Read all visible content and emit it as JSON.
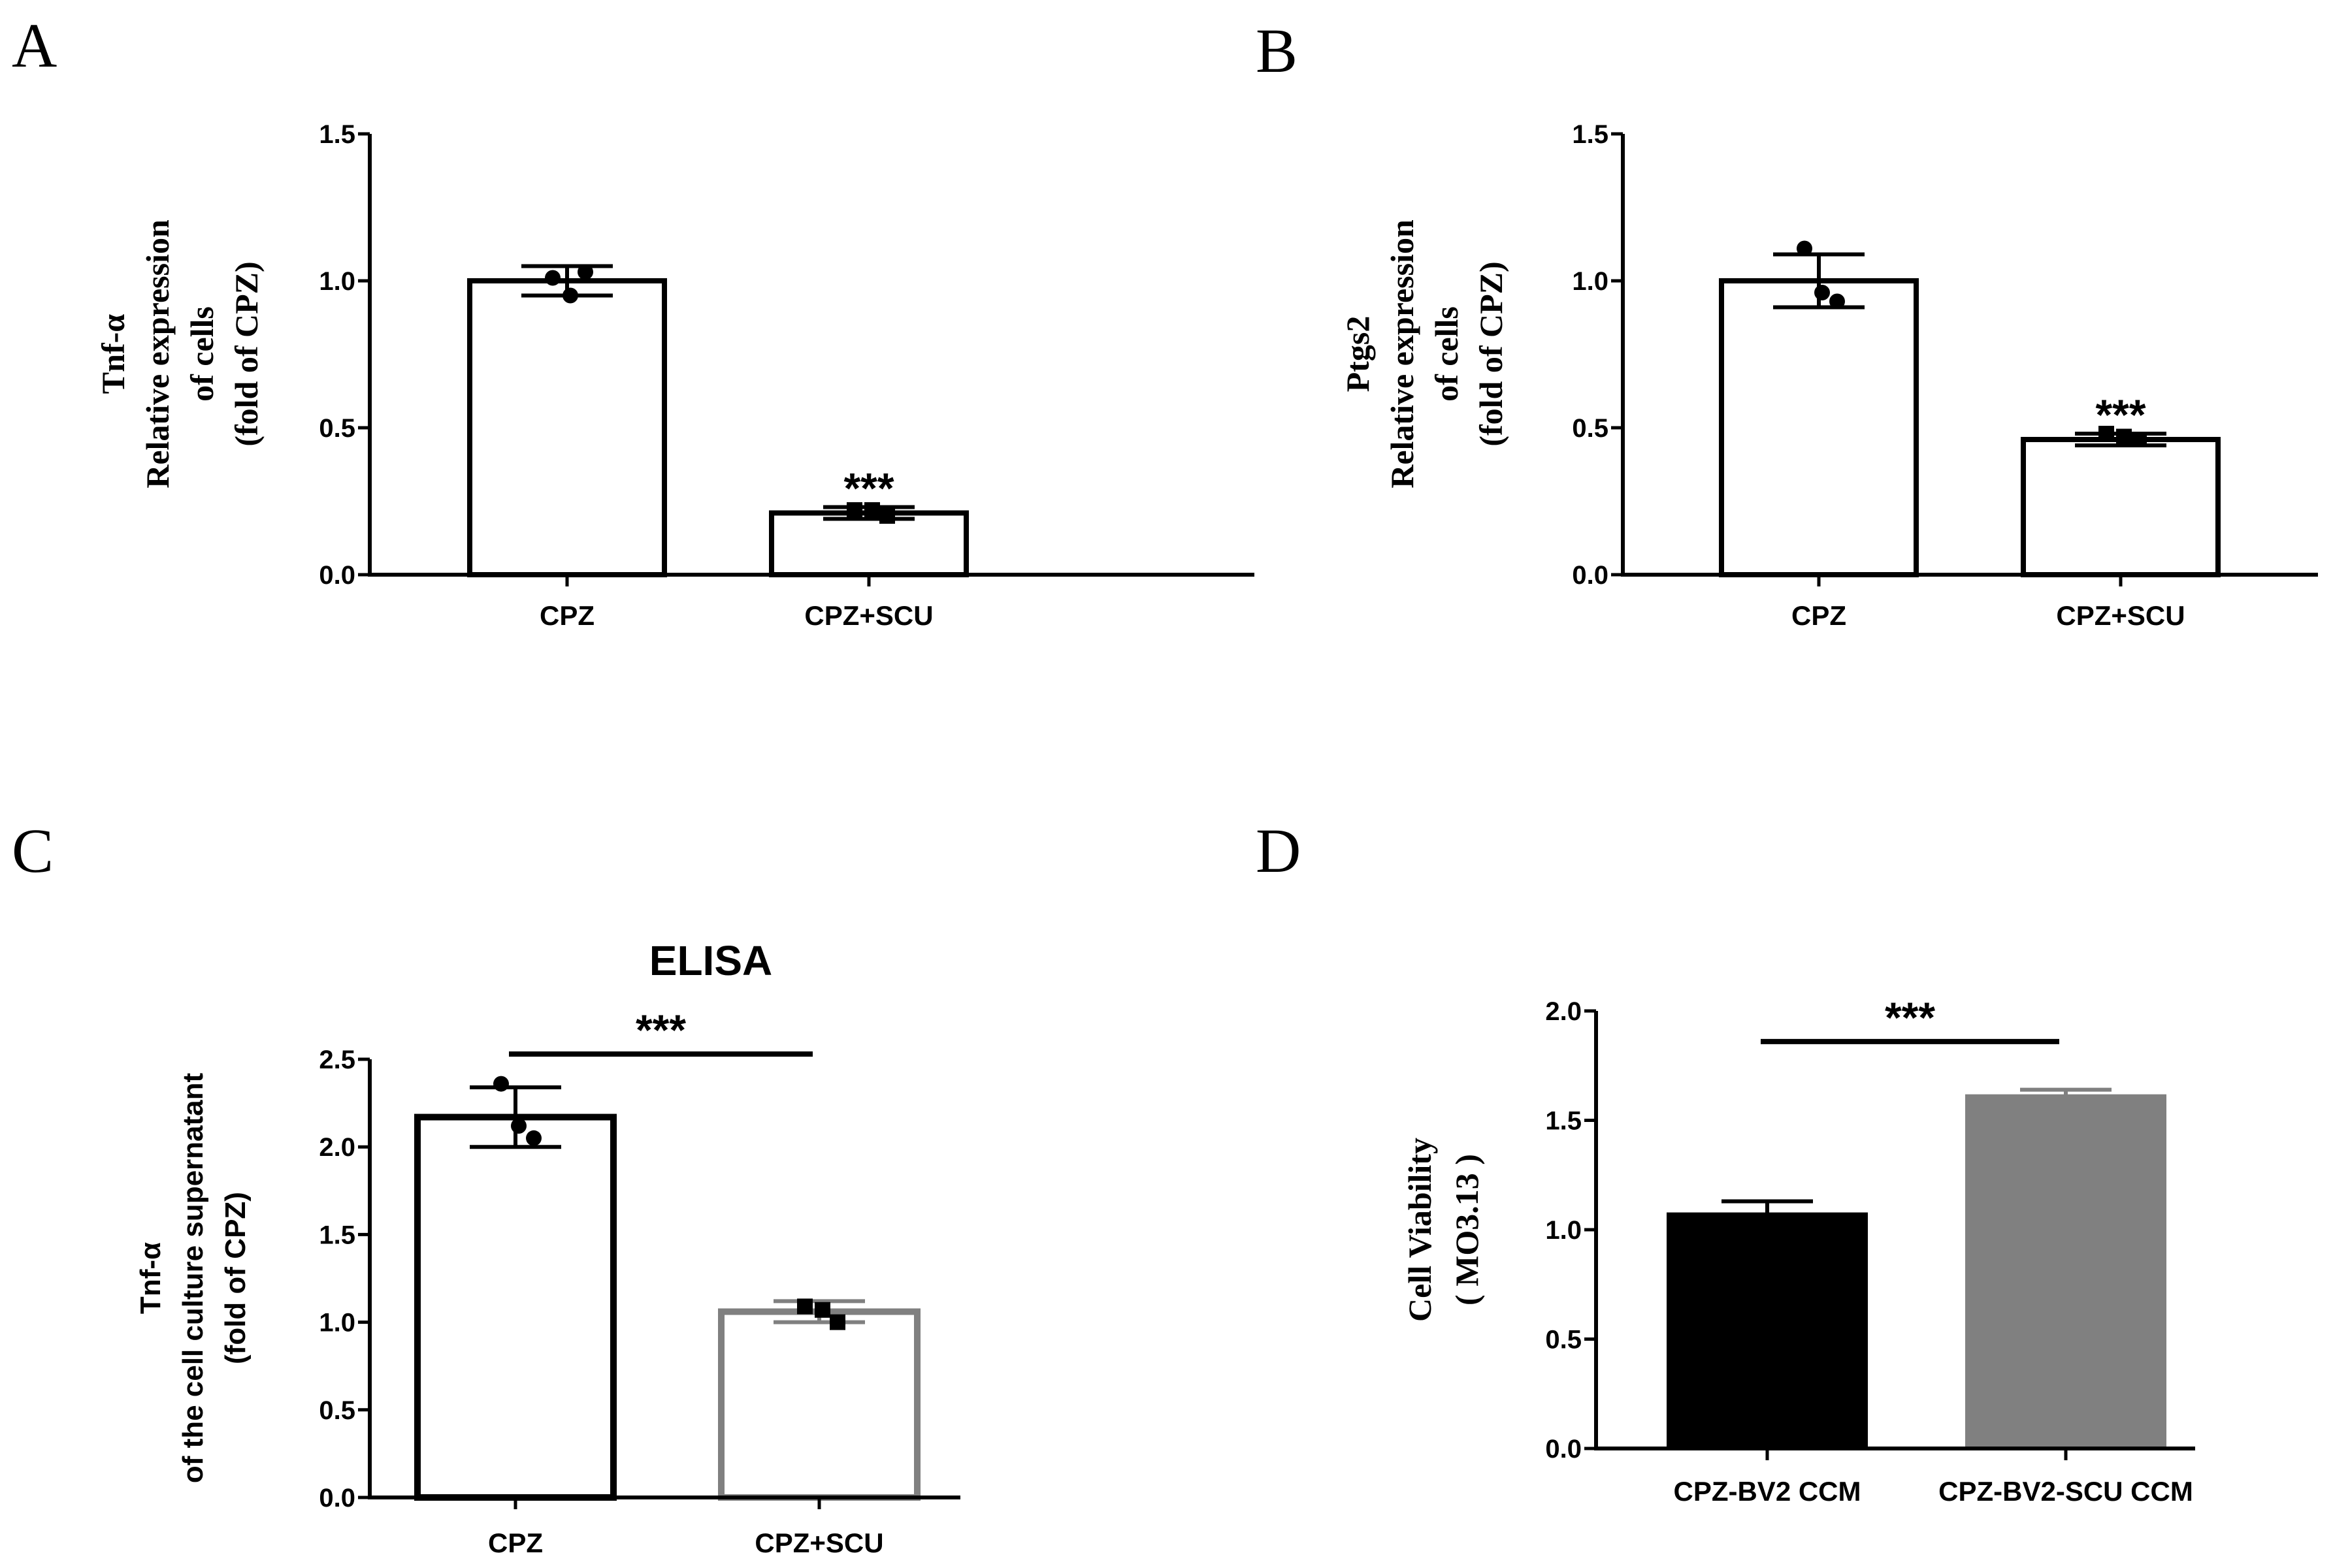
{
  "figure": {
    "panels": [
      "A",
      "B",
      "C",
      "D"
    ]
  },
  "colors": {
    "black": "#000000",
    "gray": "#808080",
    "white": "#ffffff"
  },
  "chart_data": [
    {
      "panel": "A",
      "type": "bar",
      "title": "",
      "ylabel_lines": [
        "Tnf-α",
        "Relative expression",
        "of cells",
        "(fold of CPZ)"
      ],
      "categories": [
        "CPZ",
        "CPZ+SCU"
      ],
      "values": [
        1.0,
        0.21
      ],
      "errors": [
        0.05,
        0.02
      ],
      "points": [
        [
          1.01,
          0.95,
          1.03
        ],
        [
          0.22,
          0.22,
          0.2
        ]
      ],
      "point_shapes": [
        "circle",
        "square"
      ],
      "bar_fill": [
        "#ffffff",
        "#ffffff"
      ],
      "bar_stroke": [
        "#000000",
        "#000000"
      ],
      "yticks": [
        0.0,
        0.5,
        1.0,
        1.5
      ],
      "ytick_labels": [
        "0.0",
        "0.5",
        "1.0",
        "1.5"
      ],
      "ylim": [
        0,
        1.5
      ],
      "significance": [
        {
          "label": "***",
          "type": "above-bar",
          "bar": 1
        }
      ]
    },
    {
      "panel": "B",
      "type": "bar",
      "title": "",
      "ylabel_lines": [
        "Ptgs2",
        "Relative expression",
        "of cells",
        "(fold of CPZ)"
      ],
      "categories": [
        "CPZ",
        "CPZ+SCU"
      ],
      "values": [
        1.0,
        0.46
      ],
      "errors": [
        0.09,
        0.02
      ],
      "points": [
        [
          1.11,
          0.96,
          0.93
        ],
        [
          0.48,
          0.47,
          0.46
        ]
      ],
      "point_shapes": [
        "circle",
        "square"
      ],
      "bar_fill": [
        "#ffffff",
        "#ffffff"
      ],
      "bar_stroke": [
        "#000000",
        "#000000"
      ],
      "yticks": [
        0.0,
        0.5,
        1.0,
        1.5
      ],
      "ytick_labels": [
        "0.0",
        "0.5",
        "1.0",
        "1.5"
      ],
      "ylim": [
        0,
        1.5
      ],
      "significance": [
        {
          "label": "***",
          "type": "above-bar",
          "bar": 1
        }
      ]
    },
    {
      "panel": "C",
      "type": "bar",
      "title": "ELISA",
      "ylabel_lines": [
        "Tnf-α",
        "of the cell culture supernatant",
        "(fold of CPZ)"
      ],
      "categories": [
        "CPZ",
        "CPZ+SCU"
      ],
      "values": [
        2.17,
        1.06
      ],
      "errors": [
        0.17,
        0.06
      ],
      "points": [
        [
          2.36,
          2.12,
          2.05
        ],
        [
          1.09,
          1.07,
          1.0
        ]
      ],
      "point_shapes": [
        "circle",
        "square"
      ],
      "bar_fill": [
        "#ffffff",
        "#ffffff"
      ],
      "bar_stroke": [
        "#000000",
        "#808080"
      ],
      "yticks": [
        0.0,
        0.5,
        1.0,
        1.5,
        2.0,
        2.5
      ],
      "ytick_labels": [
        "0.0",
        "0.5",
        "1.0",
        "1.5",
        "2.0",
        "2.5"
      ],
      "ylim": [
        0,
        2.5
      ],
      "significance": [
        {
          "label": "***",
          "type": "bracket",
          "from": 0,
          "to": 1,
          "level": 2.53
        }
      ]
    },
    {
      "panel": "D",
      "type": "bar",
      "title": "",
      "ylabel_lines": [
        "Cell Viability",
        "( MO3.13 )"
      ],
      "categories": [
        "CPZ-BV2 CCM",
        "CPZ-BV2-SCU CCM"
      ],
      "values": [
        1.07,
        1.61
      ],
      "errors": [
        0.06,
        0.03
      ],
      "points": [],
      "point_shapes": [],
      "bar_fill": [
        "#000000",
        "#808080"
      ],
      "bar_stroke": [
        "#000000",
        "#808080"
      ],
      "yticks": [
        0.0,
        0.5,
        1.0,
        1.5,
        2.0
      ],
      "ytick_labels": [
        "0.0",
        "0.5",
        "1.0",
        "1.5",
        "2.0"
      ],
      "ylim": [
        0,
        2.0
      ],
      "significance": [
        {
          "label": "***",
          "type": "bracket",
          "from": 0,
          "to": 1,
          "level": 1.86
        }
      ]
    }
  ]
}
